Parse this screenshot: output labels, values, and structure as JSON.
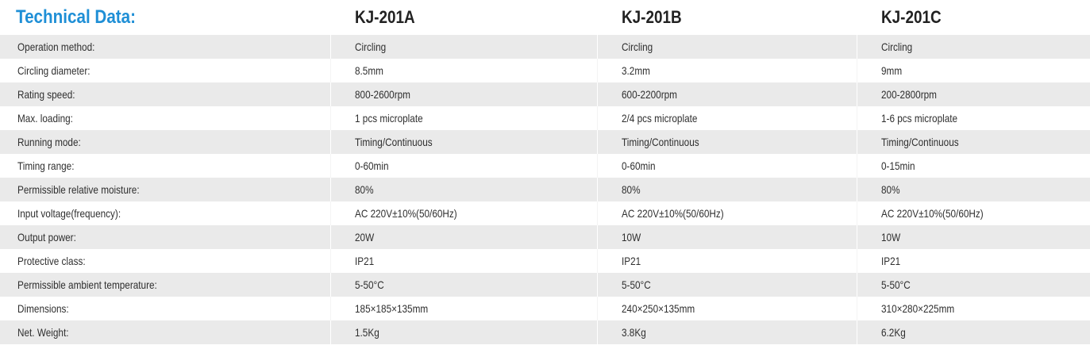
{
  "header": {
    "title": "Technical Data:",
    "models": [
      "KJ-201A",
      "KJ-201B",
      "KJ-201C"
    ]
  },
  "rows": [
    {
      "label": "Operation method:",
      "values": [
        "Circling",
        "Circling",
        "Circling"
      ]
    },
    {
      "label": "Circling diameter:",
      "values": [
        "8.5mm",
        "3.2mm",
        "9mm"
      ]
    },
    {
      "label": "Rating speed:",
      "values": [
        "800-2600rpm",
        "600-2200rpm",
        "200-2800rpm"
      ]
    },
    {
      "label": "Max. loading:",
      "values": [
        "1 pcs microplate",
        "2/4 pcs microplate",
        "1-6 pcs microplate"
      ]
    },
    {
      "label": "Running mode:",
      "values": [
        "Timing/Continuous",
        "Timing/Continuous",
        "Timing/Continuous"
      ]
    },
    {
      "label": "Timing range:",
      "values": [
        "0-60min",
        "0-60min",
        "0-15min"
      ]
    },
    {
      "label": "Permissible relative moisture:",
      "values": [
        "80%",
        "80%",
        "80%"
      ]
    },
    {
      "label": "Input voltage(frequency):",
      "values": [
        "AC 220V±10%(50/60Hz)",
        "AC 220V±10%(50/60Hz)",
        "AC 220V±10%(50/60Hz)"
      ]
    },
    {
      "label": "Output power:",
      "values": [
        "20W",
        "10W",
        "10W"
      ]
    },
    {
      "label": "Protective class:",
      "values": [
        "IP21",
        "IP21",
        "IP21"
      ]
    },
    {
      "label": "Permissible ambient temperature:",
      "values": [
        "5-50°C",
        "5-50°C",
        "5-50°C"
      ]
    },
    {
      "label": "Dimensions:",
      "values": [
        "185×185×135mm",
        "240×250×135mm",
        "310×280×225mm"
      ]
    },
    {
      "label": "Net. Weight:",
      "values": [
        "1.5Kg",
        "3.8Kg",
        "6.2Kg"
      ]
    }
  ],
  "colors": {
    "heading": "#1f8fd6",
    "row_shade": "#eaeaea",
    "text": "#2f2f2f"
  }
}
